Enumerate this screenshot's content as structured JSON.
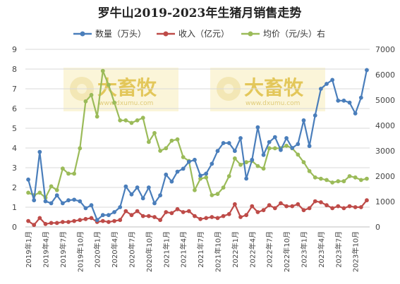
{
  "chart_data": {
    "type": "line",
    "title": "罗牛山2019-2023年生猪月销售走势",
    "x": [
      "2019年1月",
      "2019年2月",
      "2019年3月",
      "2019年4月",
      "2019年5月",
      "2019年6月",
      "2019年7月",
      "2019年8月",
      "2019年9月",
      "2019年10月",
      "2019年11月",
      "2019年12月",
      "2020年1月",
      "2020年2月",
      "2020年3月",
      "2020年4月",
      "2020年5月",
      "2020年6月",
      "2020年7月",
      "2020年8月",
      "2020年9月",
      "2020年10月",
      "2020年11月",
      "2020年12月",
      "2021年1月",
      "2021年2月",
      "2021年3月",
      "2021年4月",
      "2021年5月",
      "2021年6月",
      "2021年7月",
      "2021年8月",
      "2021年9月",
      "2021年10月",
      "2021年11月",
      "2021年12月",
      "2022年1月",
      "2022年2月",
      "2022年3月",
      "2022年4月",
      "2022年5月",
      "2022年6月",
      "2022年7月",
      "2022年8月",
      "2022年9月",
      "2022年10月",
      "2022年11月",
      "2022年12月",
      "2023年1月",
      "2023年2月",
      "2023年3月",
      "2023年4月",
      "2023年5月",
      "2023年6月",
      "2023年7月",
      "2023年8月",
      "2023年9月",
      "2023年10月",
      "2023年11月",
      "2023年12月"
    ],
    "x_tick_labels": [
      "2019年1月",
      "2019年4月",
      "2019年7月",
      "2019年10月",
      "2020年1月",
      "2020年4月",
      "2020年7月",
      "2020年10月",
      "2021年1月",
      "2021年4月",
      "2021年7月",
      "2021年10月",
      "2022年1月",
      "2022年4月",
      "2022年7月",
      "2022年10月",
      "2023年1月",
      "2023年4月",
      "2023年7月",
      "2023年10月"
    ],
    "y_left": {
      "lim": [
        0,
        9
      ],
      "ticks": [
        0,
        1,
        2,
        3,
        4,
        5,
        6,
        7,
        8,
        9
      ]
    },
    "y_right": {
      "lim": [
        0,
        7000
      ],
      "ticks": [
        0,
        1000,
        2000,
        3000,
        4000,
        5000,
        6000,
        7000
      ]
    },
    "grid": true,
    "legend_position": "top",
    "series": [
      {
        "name": "数量（万头）",
        "axis": "left",
        "color": "#4a7ebb",
        "values": [
          2.4,
          1.35,
          3.8,
          1.3,
          1.2,
          1.6,
          1.2,
          1.35,
          1.38,
          1.3,
          0.95,
          1.1,
          0.35,
          0.6,
          0.6,
          0.75,
          1.0,
          2.05,
          1.65,
          2.0,
          1.45,
          2.0,
          1.2,
          1.6,
          2.65,
          2.3,
          2.8,
          2.95,
          3.3,
          3.4,
          2.6,
          2.7,
          3.2,
          3.85,
          4.25,
          4.25,
          3.85,
          4.5,
          2.45,
          3.4,
          5.05,
          3.65,
          4.3,
          4.55,
          3.9,
          4.5,
          4.0,
          4.2,
          5.4,
          4.1,
          5.65,
          7.0,
          7.25,
          7.45,
          6.4,
          6.4,
          6.3,
          5.75,
          6.55,
          7.95
        ]
      },
      {
        "name": "收入（亿元）",
        "axis": "left",
        "color": "#be4b48",
        "values": [
          0.3,
          0.1,
          0.45,
          0.15,
          0.2,
          0.2,
          0.25,
          0.25,
          0.3,
          0.35,
          0.4,
          0.45,
          0.25,
          0.3,
          0.25,
          0.3,
          0.35,
          0.8,
          0.6,
          0.8,
          0.55,
          0.55,
          0.5,
          0.35,
          0.75,
          0.7,
          0.9,
          0.75,
          0.8,
          0.55,
          0.4,
          0.45,
          0.5,
          0.45,
          0.55,
          0.65,
          1.15,
          0.5,
          0.6,
          1.05,
          0.75,
          0.85,
          1.1,
          0.95,
          1.2,
          1.05,
          1.05,
          1.15,
          0.85,
          0.95,
          1.3,
          1.25,
          1.1,
          0.95,
          1.05,
          0.95,
          1.05,
          1.0,
          1.0,
          1.35
        ]
      },
      {
        "name": "均价（元/头）右",
        "axis": "right",
        "color": "#9bbb59",
        "values": [
          1350,
          1250,
          1350,
          1150,
          1600,
          1450,
          2300,
          2100,
          2100,
          3100,
          4950,
          5200,
          4350,
          6150,
          5600,
          4900,
          4200,
          4200,
          4100,
          4200,
          4300,
          3350,
          3700,
          3000,
          3100,
          3400,
          3450,
          2750,
          2600,
          1450,
          1900,
          1950,
          1250,
          1300,
          1550,
          2000,
          2700,
          2450,
          2550,
          2600,
          2400,
          2300,
          3100,
          3100,
          3100,
          3200,
          3100,
          2850,
          2550,
          2200,
          1950,
          1900,
          1850,
          1750,
          1800,
          1800,
          2000,
          1950,
          1850,
          1900
        ]
      }
    ],
    "watermark": {
      "text": "大畜牧",
      "url": "www.dxumu.com"
    }
  }
}
